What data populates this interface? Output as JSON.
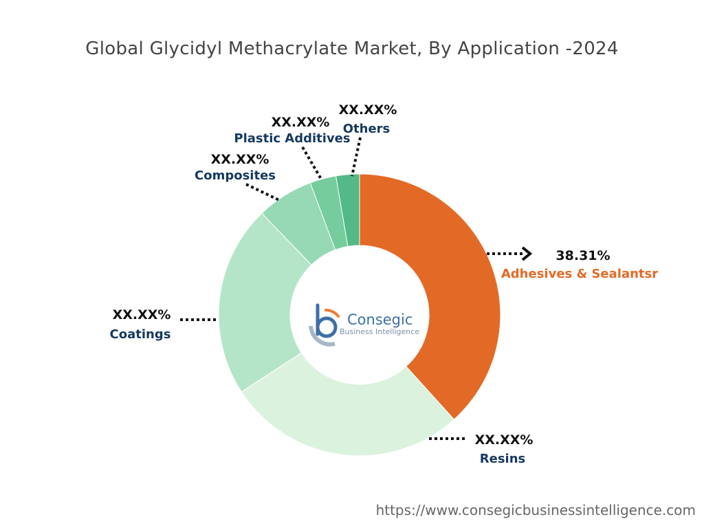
{
  "title": "Global Glycidyl Methacrylate Market, By Application -2024",
  "footer_url": "https://www.consegicbusinessintelligence.com",
  "logo": {
    "name": "Consegic",
    "tagline": "Business Intelligence",
    "colors": {
      "blue": "#3d6fa8",
      "orange": "#f07a33",
      "gray": "#a6b8c8"
    }
  },
  "chart_data": {
    "type": "pie",
    "variant": "donut",
    "title": "Global Glycidyl Methacrylate Market, By Application -2024",
    "slices": [
      {
        "label": "Adhesives & Sealantsr",
        "value_label": "38.31%",
        "value": 38.31,
        "color": "#e36a26",
        "label_color": "#e36a26"
      },
      {
        "label": "Resins",
        "value_label": "XX.XX%",
        "value": 27.5,
        "color": "#dbf2df",
        "label_color": "#15385f"
      },
      {
        "label": "Coatings",
        "value_label": "XX.XX%",
        "value": 22.0,
        "color": "#b5e5c8",
        "label_color": "#15385f"
      },
      {
        "label": "Composites",
        "value_label": "XX.XX%",
        "value": 6.5,
        "color": "#96d9b4",
        "label_color": "#15385f"
      },
      {
        "label": "Plastic Additives",
        "value_label": "XX.XX%",
        "value": 3.0,
        "color": "#76cc9d",
        "label_color": "#15385f"
      },
      {
        "label": "Others",
        "value_label": "XX.XX%",
        "value": 2.69,
        "color": "#52b987",
        "label_color": "#15385f"
      }
    ]
  }
}
